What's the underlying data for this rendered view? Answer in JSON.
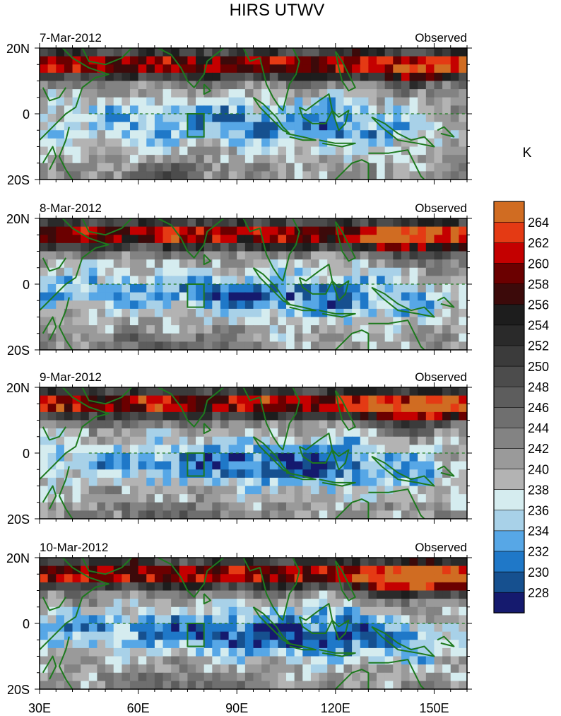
{
  "chart_data": {
    "type": "heatmap",
    "title": "HIRS UTWV",
    "unit_label": "K",
    "x_axis": {
      "range": [
        30,
        160
      ],
      "ticks": [
        30,
        60,
        90,
        120,
        150
      ],
      "tick_labels": [
        "30E",
        "60E",
        "90E",
        "120E",
        "150E"
      ]
    },
    "y_axis": {
      "range": [
        -20,
        20
      ],
      "ticks": [
        20,
        0,
        -20
      ],
      "tick_labels": [
        "20N",
        "0",
        "20S"
      ]
    },
    "colorbar": {
      "labels": [
        "228",
        "230",
        "232",
        "234",
        "236",
        "238",
        "240",
        "242",
        "244",
        "246",
        "248",
        "250",
        "252",
        "254",
        "256",
        "258",
        "260",
        "262",
        "264"
      ],
      "colors": [
        "#151a6e",
        "#16508f",
        "#1f78c8",
        "#57a7e6",
        "#a8d1e8",
        "#d5ecef",
        "#b3b3b3",
        "#9a9a9a",
        "#838383",
        "#6f6f6f",
        "#5d5d5d",
        "#4c4c4c",
        "#3b3b3b",
        "#2a2a2a",
        "#1d1d1d",
        "#3c0a0a",
        "#6b0000",
        "#c40000",
        "#e43a14",
        "#d06c22"
      ]
    },
    "colors": {
      "coast": "#1e7a1e",
      "box": "#1e7a1e",
      "equator": "#1e7a1e"
    },
    "box_region": {
      "lon": [
        75,
        80
      ],
      "lat": [
        -7,
        0
      ]
    },
    "panels": [
      {
        "date": "7-Mar-2012",
        "label": "Observed"
      },
      {
        "date": "8-Mar-2012",
        "label": "Observed"
      },
      {
        "date": "9-Mar-2012",
        "label": "Observed"
      },
      {
        "date": "10-Mar-2012",
        "label": "Observed"
      }
    ]
  }
}
